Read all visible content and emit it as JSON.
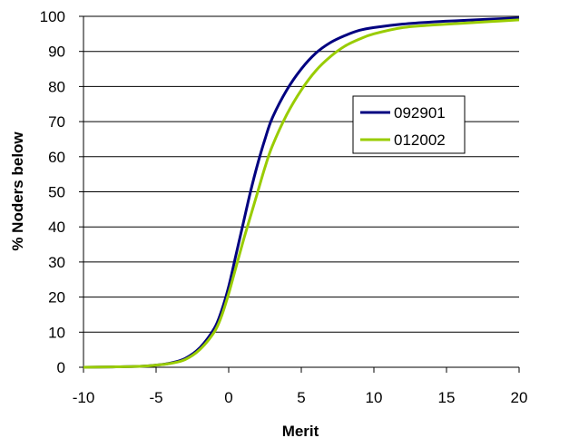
{
  "chart_data": {
    "type": "line",
    "title": "",
    "xlabel": "Merit",
    "ylabel": "% Noders below",
    "xlim": [
      -10,
      20
    ],
    "ylim": [
      0,
      100
    ],
    "xticks": [
      -10,
      -5,
      0,
      5,
      10,
      15,
      20
    ],
    "yticks": [
      0,
      10,
      20,
      30,
      40,
      50,
      60,
      70,
      80,
      90,
      100
    ],
    "grid": "horizontal",
    "legend_position": "right",
    "series": [
      {
        "name": "092901",
        "color": "#000080",
        "points": [
          [
            -10,
            0
          ],
          [
            -8,
            0.1
          ],
          [
            -6,
            0.3
          ],
          [
            -5,
            0.6
          ],
          [
            -4,
            1.2
          ],
          [
            -3,
            2.5
          ],
          [
            -2,
            5.5
          ],
          [
            -1,
            11
          ],
          [
            -0.5,
            16
          ],
          [
            0,
            23
          ],
          [
            0.5,
            32
          ],
          [
            1,
            41
          ],
          [
            1.5,
            50
          ],
          [
            2,
            58
          ],
          [
            2.5,
            65
          ],
          [
            3,
            71
          ],
          [
            4,
            79
          ],
          [
            5,
            85
          ],
          [
            6,
            89.5
          ],
          [
            7,
            92.5
          ],
          [
            8,
            94.5
          ],
          [
            9,
            96
          ],
          [
            10,
            96.8
          ],
          [
            12,
            97.8
          ],
          [
            14,
            98.4
          ],
          [
            16,
            98.8
          ],
          [
            18,
            99.2
          ],
          [
            20,
            99.5
          ]
        ]
      },
      {
        "name": "012002",
        "color": "#99cc00",
        "points": [
          [
            -10,
            0
          ],
          [
            -8,
            0.1
          ],
          [
            -6,
            0.3
          ],
          [
            -5,
            0.6
          ],
          [
            -4,
            1.1
          ],
          [
            -3,
            2.2
          ],
          [
            -2,
            5
          ],
          [
            -1,
            10
          ],
          [
            -0.5,
            14.5
          ],
          [
            0,
            21
          ],
          [
            0.5,
            28.5
          ],
          [
            1,
            36
          ],
          [
            1.5,
            43
          ],
          [
            2,
            50
          ],
          [
            2.5,
            57
          ],
          [
            3,
            63
          ],
          [
            4,
            72
          ],
          [
            5,
            79
          ],
          [
            6,
            84.5
          ],
          [
            7,
            88.5
          ],
          [
            8,
            91.5
          ],
          [
            9,
            93.5
          ],
          [
            10,
            95
          ],
          [
            12,
            96.8
          ],
          [
            14,
            97.5
          ],
          [
            16,
            98
          ],
          [
            18,
            98.5
          ],
          [
            20,
            99
          ]
        ]
      }
    ]
  }
}
